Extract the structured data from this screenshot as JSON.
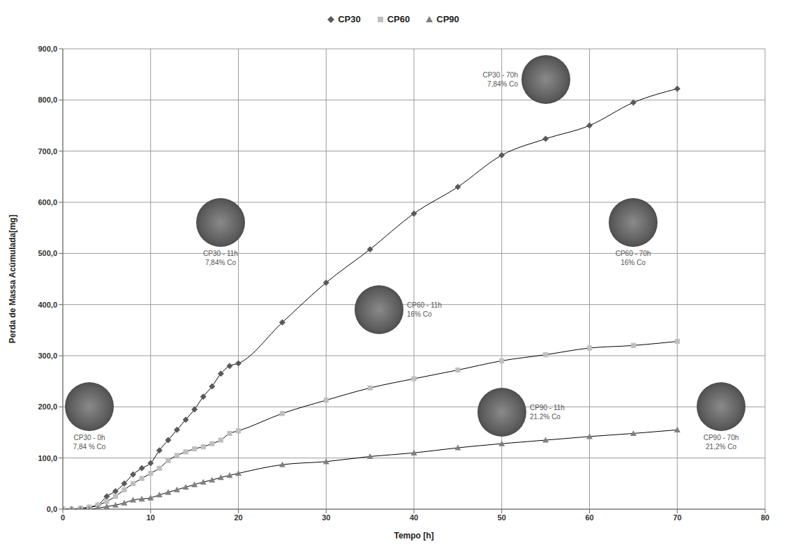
{
  "chart_data": {
    "type": "line",
    "x_label": "Tempo [h]",
    "y_label": "Perda de Massa Acúmulada[mg]",
    "x": [
      0,
      1,
      2,
      3,
      4,
      5,
      6,
      7,
      8,
      9,
      10,
      11,
      12,
      13,
      14,
      15,
      16,
      17,
      18,
      19,
      20,
      25,
      30,
      35,
      40,
      45,
      50,
      55,
      60,
      65,
      70
    ],
    "series": [
      {
        "name": "CP30",
        "color": "#595959",
        "marker": "diamond",
        "line_style": "solid",
        "values": [
          0,
          0,
          0,
          3,
          8,
          25,
          35,
          50,
          68,
          80,
          90,
          115,
          135,
          155,
          175,
          195,
          220,
          240,
          265,
          280,
          285,
          365,
          443,
          508,
          578,
          630,
          692,
          724,
          750,
          795,
          822
        ]
      },
      {
        "name": "CP60",
        "color": "#bfbfbf",
        "marker": "square",
        "line_style": "solid",
        "values": [
          0,
          0,
          2,
          4,
          8,
          15,
          25,
          38,
          50,
          60,
          70,
          80,
          95,
          105,
          112,
          118,
          122,
          128,
          135,
          148,
          153,
          187,
          213,
          237,
          255,
          272,
          290,
          302,
          315,
          320,
          328
        ]
      },
      {
        "name": "CP90",
        "color": "#808080",
        "marker": "triangle",
        "line_style": "solid",
        "values": [
          0,
          0,
          0,
          0,
          2,
          5,
          8,
          12,
          18,
          20,
          22,
          28,
          33,
          38,
          43,
          48,
          53,
          57,
          62,
          66,
          70,
          87,
          93,
          103,
          110,
          120,
          128,
          135,
          142,
          148,
          155
        ]
      }
    ],
    "xlim": [
      0,
      80
    ],
    "xticks": [
      0,
      10,
      20,
      30,
      40,
      50,
      60,
      70,
      80
    ],
    "ylim": [
      0,
      900
    ],
    "yticks": [
      {
        "value": 0,
        "label": "0,0"
      },
      {
        "value": 100,
        "label": "100,0"
      },
      {
        "value": 200,
        "label": "200,0"
      },
      {
        "value": 300,
        "label": "300,0"
      },
      {
        "value": 400,
        "label": "400,0"
      },
      {
        "value": 500,
        "label": "500,0"
      },
      {
        "value": 600,
        "label": "600,0"
      },
      {
        "value": 700,
        "label": "700,0"
      },
      {
        "value": 800,
        "label": "800,0"
      },
      {
        "value": 900,
        "label": "900,0"
      }
    ],
    "grid": true,
    "legend": "top",
    "annotations": [
      {
        "lines": [
          "CP30 - 0h",
          "7,84 % Co"
        ]
      },
      {
        "lines": [
          "CP30 - 11h",
          "7,84% Co"
        ]
      },
      {
        "lines": [
          "CP60 - 11h",
          "16% Co"
        ]
      },
      {
        "lines": [
          "CP30 - 70h",
          "7,84% Co"
        ]
      },
      {
        "lines": [
          "CP60 - 70h",
          "16% Co"
        ]
      },
      {
        "lines": [
          "CP90 - 70h",
          "21,2% Co"
        ]
      },
      {
        "lines": [
          "CP90 - 11h",
          "21.2% Co"
        ]
      }
    ]
  }
}
